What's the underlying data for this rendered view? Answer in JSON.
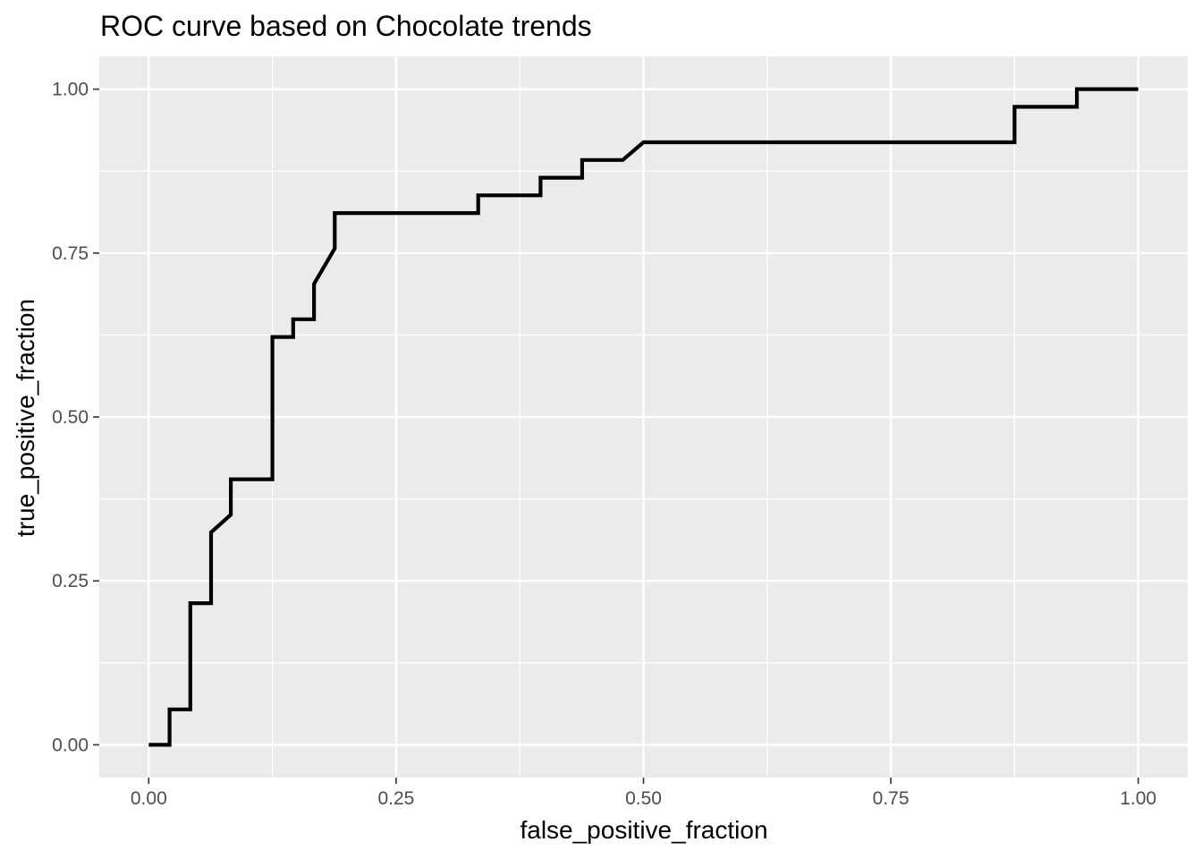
{
  "chart_data": {
    "type": "line",
    "title": "ROC curve based on Chocolate trends",
    "xlabel": "false_positive_fraction",
    "ylabel": "true_positive_fraction",
    "xlim": [
      -0.05,
      1.05
    ],
    "ylim": [
      -0.05,
      1.05
    ],
    "xticks": [
      0.0,
      0.25,
      0.5,
      0.75,
      1.0
    ],
    "xtick_labels": [
      "0.00",
      "0.25",
      "0.50",
      "0.75",
      "1.00"
    ],
    "yticks": [
      0.0,
      0.25,
      0.5,
      0.75,
      1.0
    ],
    "ytick_labels": [
      "0.00",
      "0.25",
      "0.50",
      "0.75",
      "1.00"
    ],
    "grid": true,
    "panel_background": "#ebebeb",
    "grid_color": "#ffffff",
    "line_color": "#000000",
    "series": [
      {
        "x": [
          0.0,
          0.021,
          0.021,
          0.042,
          0.042,
          0.063,
          0.063,
          0.083,
          0.083,
          0.125,
          0.125,
          0.146,
          0.146,
          0.167,
          0.167,
          0.188,
          0.188,
          0.333,
          0.333,
          0.396,
          0.396,
          0.438,
          0.438,
          0.479,
          0.5,
          0.875,
          0.875,
          0.938,
          0.938,
          1.0
        ],
        "y": [
          0.0,
          0.0,
          0.054,
          0.054,
          0.216,
          0.216,
          0.324,
          0.351,
          0.405,
          0.405,
          0.622,
          0.622,
          0.649,
          0.649,
          0.703,
          0.757,
          0.811,
          0.811,
          0.838,
          0.838,
          0.865,
          0.865,
          0.892,
          0.892,
          0.919,
          0.919,
          0.973,
          0.973,
          1.0,
          1.0
        ]
      }
    ]
  }
}
